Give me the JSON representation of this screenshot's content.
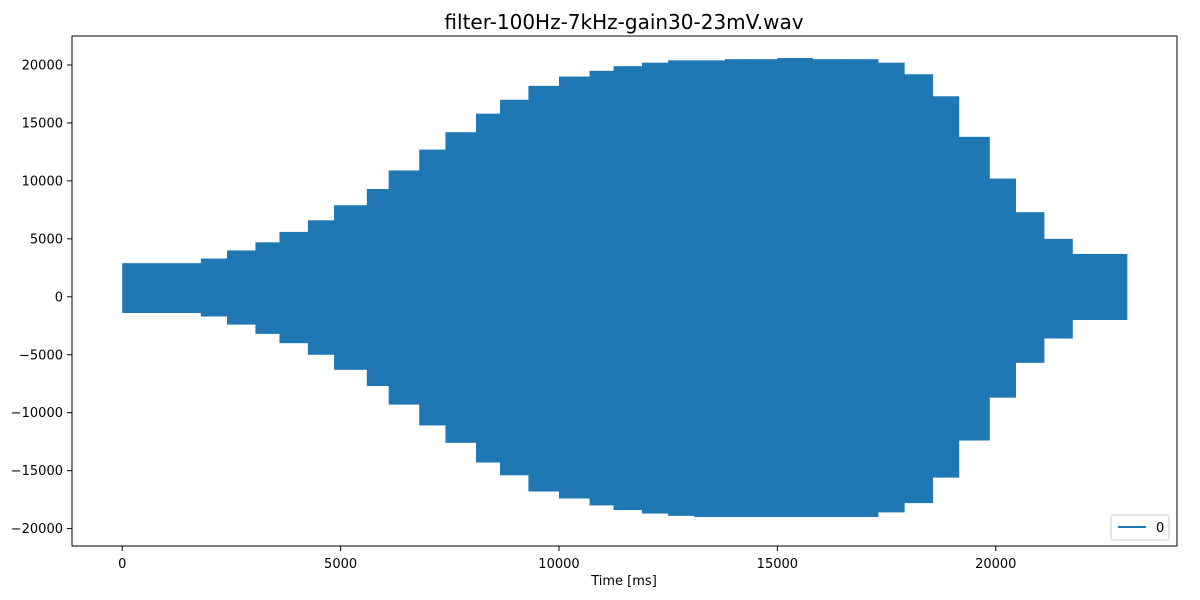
{
  "chart_data": {
    "type": "area",
    "title": "filter-100Hz-7kHz-gain30-23mV.wav",
    "xlabel": "Time [ms]",
    "ylabel": "",
    "xlim": [
      -1150,
      24150
    ],
    "ylim": [
      -21500,
      22500
    ],
    "xticks": [
      0,
      5000,
      10000,
      15000,
      20000
    ],
    "xtick_labels": [
      "0",
      "5000",
      "10000",
      "15000",
      "20000"
    ],
    "yticks": [
      -20000,
      -15000,
      -10000,
      -5000,
      0,
      5000,
      10000,
      15000,
      20000
    ],
    "ytick_labels": [
      "−20000",
      "−15000",
      "−10000",
      "−5000",
      "0",
      "5000",
      "10000",
      "15000",
      "20000"
    ],
    "grid": false,
    "legend": {
      "position": "lower-right"
    },
    "series": [
      {
        "name": "0",
        "color": "#1f77b4",
        "segments": [
          {
            "x_start": 0,
            "x_end": 1800,
            "max": 2900,
            "min": -1400
          },
          {
            "x_start": 1800,
            "x_end": 2400,
            "max": 3300,
            "min": -1700
          },
          {
            "x_start": 2400,
            "x_end": 3050,
            "max": 4000,
            "min": -2400
          },
          {
            "x_start": 3050,
            "x_end": 3600,
            "max": 4700,
            "min": -3200
          },
          {
            "x_start": 3600,
            "x_end": 4250,
            "max": 5600,
            "min": -4000
          },
          {
            "x_start": 4250,
            "x_end": 4850,
            "max": 6600,
            "min": -5000
          },
          {
            "x_start": 4850,
            "x_end": 5600,
            "max": 7900,
            "min": -6300
          },
          {
            "x_start": 5600,
            "x_end": 6100,
            "max": 9300,
            "min": -7700
          },
          {
            "x_start": 6100,
            "x_end": 6800,
            "max": 10900,
            "min": -9300
          },
          {
            "x_start": 6800,
            "x_end": 7400,
            "max": 12700,
            "min": -11100
          },
          {
            "x_start": 7400,
            "x_end": 8100,
            "max": 14200,
            "min": -12600
          },
          {
            "x_start": 8100,
            "x_end": 8650,
            "max": 15800,
            "min": -14300
          },
          {
            "x_start": 8650,
            "x_end": 9300,
            "max": 17000,
            "min": -15400
          },
          {
            "x_start": 9300,
            "x_end": 10000,
            "max": 18200,
            "min": -16800
          },
          {
            "x_start": 10000,
            "x_end": 10700,
            "max": 19000,
            "min": -17400
          },
          {
            "x_start": 10700,
            "x_end": 11250,
            "max": 19500,
            "min": -18000
          },
          {
            "x_start": 11250,
            "x_end": 11900,
            "max": 19900,
            "min": -18400
          },
          {
            "x_start": 11900,
            "x_end": 12500,
            "max": 20200,
            "min": -18700
          },
          {
            "x_start": 12500,
            "x_end": 13100,
            "max": 20400,
            "min": -18900
          },
          {
            "x_start": 13100,
            "x_end": 13800,
            "max": 20400,
            "min": -19000
          },
          {
            "x_start": 13800,
            "x_end": 14400,
            "max": 20500,
            "min": -19000
          },
          {
            "x_start": 14400,
            "x_end": 15000,
            "max": 20500,
            "min": -19000
          },
          {
            "x_start": 15000,
            "x_end": 15800,
            "max": 20600,
            "min": -19000
          },
          {
            "x_start": 15800,
            "x_end": 16450,
            "max": 20500,
            "min": -19000
          },
          {
            "x_start": 16450,
            "x_end": 17300,
            "max": 20500,
            "min": -19000
          },
          {
            "x_start": 17300,
            "x_end": 17900,
            "max": 20200,
            "min": -18600
          },
          {
            "x_start": 17900,
            "x_end": 18550,
            "max": 19200,
            "min": -17800
          },
          {
            "x_start": 18550,
            "x_end": 19150,
            "max": 17300,
            "min": -15600
          },
          {
            "x_start": 19150,
            "x_end": 19850,
            "max": 13800,
            "min": -12400
          },
          {
            "x_start": 19850,
            "x_end": 20450,
            "max": 10200,
            "min": -8700
          },
          {
            "x_start": 20450,
            "x_end": 21100,
            "max": 7300,
            "min": -5700
          },
          {
            "x_start": 21100,
            "x_end": 21750,
            "max": 5000,
            "min": -3600
          },
          {
            "x_start": 21750,
            "x_end": 23000,
            "max": 3700,
            "min": -2000
          }
        ]
      }
    ]
  }
}
